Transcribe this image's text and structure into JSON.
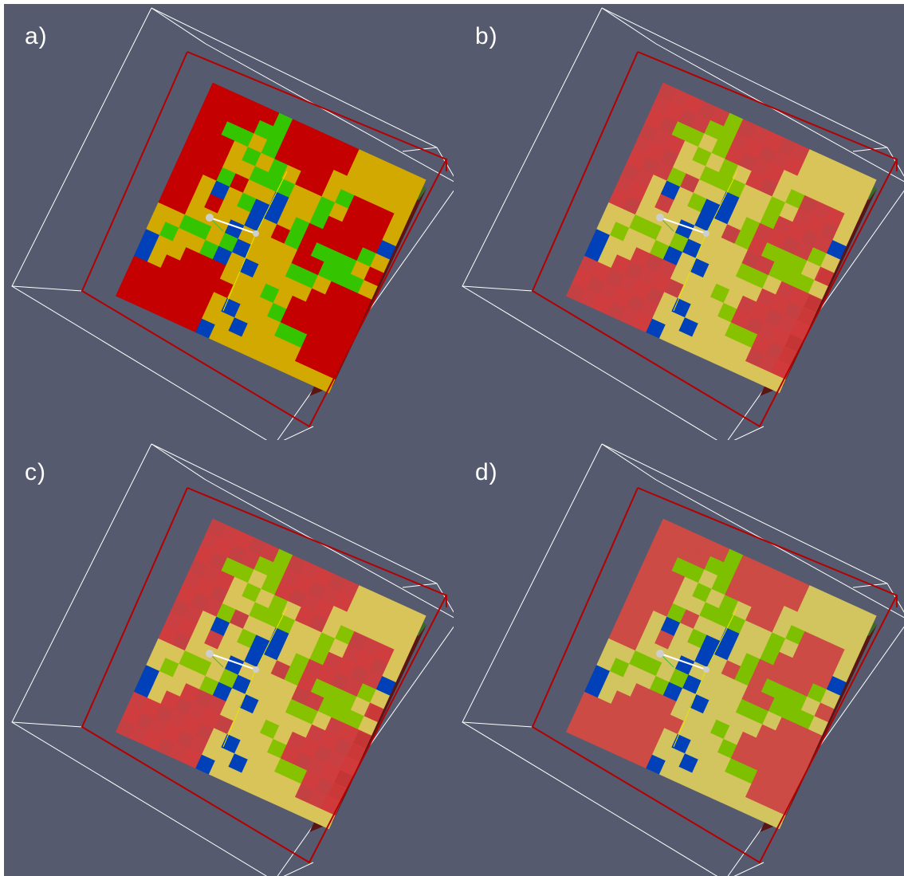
{
  "colors": {
    "background": "#555a6f",
    "red": "#c40000",
    "yellow": "#d1a900",
    "green": "#35c400",
    "blue": "#0040b8",
    "bounding_box": "#ffffff",
    "inner_box": "#b40000"
  },
  "panels": [
    {
      "label": "a)",
      "style": "opaque"
    },
    {
      "label": "b)",
      "style": "layered"
    },
    {
      "label": "c)",
      "style": "layered"
    },
    {
      "label": "d)",
      "style": "flat"
    }
  ]
}
